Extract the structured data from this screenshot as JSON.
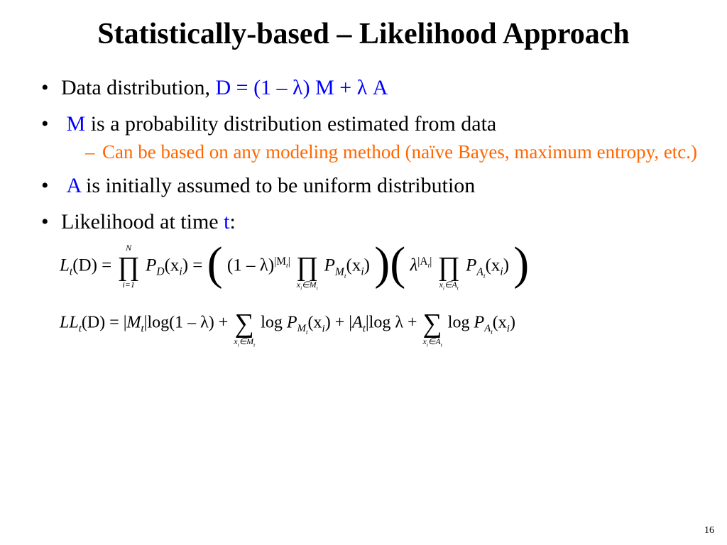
{
  "colors": {
    "background": "#ffffff",
    "text": "#000000",
    "accent_blue": "#0000ff",
    "accent_orange": "#ff6600"
  },
  "typography": {
    "family": "Times New Roman",
    "title_size_pt": 42,
    "bullet_size_pt": 30,
    "sub_bullet_size_pt": 27,
    "math_size_pt": 25
  },
  "title": "Statistically-based – Likelihood Approach",
  "bullets": {
    "b1": {
      "prefix": "Data distribution, ",
      "formula": "D = (1 – λ) M + λ A"
    },
    "b2": {
      "var": "M",
      "text": " is a probability distribution estimated from data",
      "sub": "Can be based on any modeling method (naïve Bayes, maximum entropy, etc.)"
    },
    "b3": {
      "var": "A",
      "text": " is initially assumed to be uniform distribution"
    },
    "b4": {
      "prefix": "Likelihood at time ",
      "var": "t",
      "suffix": ":"
    }
  },
  "math": {
    "eq1": {
      "lhs": "L",
      "sub_t": "t",
      "ofD": "(D) = ",
      "prod1_top": "N",
      "prod1_bot": "i=1",
      "PD": "P",
      "PD_sub": "D",
      "xi": "(x",
      "xi_sub": "i",
      "close": ") = ",
      "lam1": "(1 – λ)",
      "exp_M": "|M",
      "exp_M_sub": "t",
      "exp_M_close": "|",
      "prod2_bot": "x",
      "prod2_bot_sub": "i",
      "prod2_bot_rel": "∈M",
      "prod2_bot_t": "t",
      "PM": "P",
      "PM_sub": "M",
      "PM_sub_t": "t",
      "lam2": "λ",
      "exp_A": "|A",
      "exp_A_sub": "t",
      "exp_A_close": "|",
      "prod3_bot_rel": "∈A",
      "PA": "P",
      "PA_sub": "A"
    },
    "eq2": {
      "lhs": "LL",
      "sub_t": "t",
      "ofD": "(D) = ",
      "absM_open": "|",
      "M": "M",
      "absM_close": "|",
      "log1": "log(1 – λ) + ",
      "sum1_bot_rel": "∈M",
      "logPM": "log ",
      "plus": " + ",
      "absA": "|",
      "A": "A",
      "loglam": "log λ + ",
      "sum2_bot_rel": "∈A",
      "logPA": "log "
    }
  },
  "page_number": "16"
}
